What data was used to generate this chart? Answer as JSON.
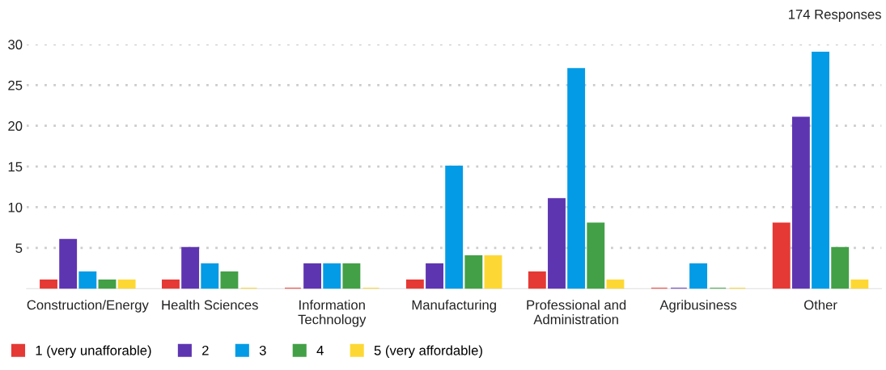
{
  "chart_data": {
    "type": "bar",
    "categories": [
      "Construction/Energy",
      "Health Sciences",
      "Information\nTechnology",
      "Manufacturing",
      "Professional and\nAdministration",
      "Agribusiness",
      "Other"
    ],
    "series": [
      {
        "name": "1 (very unafforable)",
        "color": "#e53935",
        "values": [
          1,
          1,
          0,
          1,
          2,
          0,
          8
        ]
      },
      {
        "name": "2",
        "color": "#5e35b1",
        "values": [
          6,
          5,
          3,
          3,
          11,
          0,
          21
        ]
      },
      {
        "name": "3",
        "color": "#039be5",
        "values": [
          2,
          3,
          3,
          15,
          27,
          3,
          29
        ]
      },
      {
        "name": "4",
        "color": "#43a047",
        "values": [
          1,
          2,
          3,
          4,
          8,
          0,
          5
        ]
      },
      {
        "name": "5 (very affordable)",
        "color": "#fdd835",
        "values": [
          1,
          0,
          0,
          4,
          1,
          0,
          1
        ]
      }
    ],
    "ylim": [
      0,
      30
    ],
    "yticks": [
      5,
      10,
      15,
      20,
      25,
      30
    ],
    "grid": "y",
    "legend": "bottom left",
    "annotations": [
      "174 Responses"
    ]
  }
}
